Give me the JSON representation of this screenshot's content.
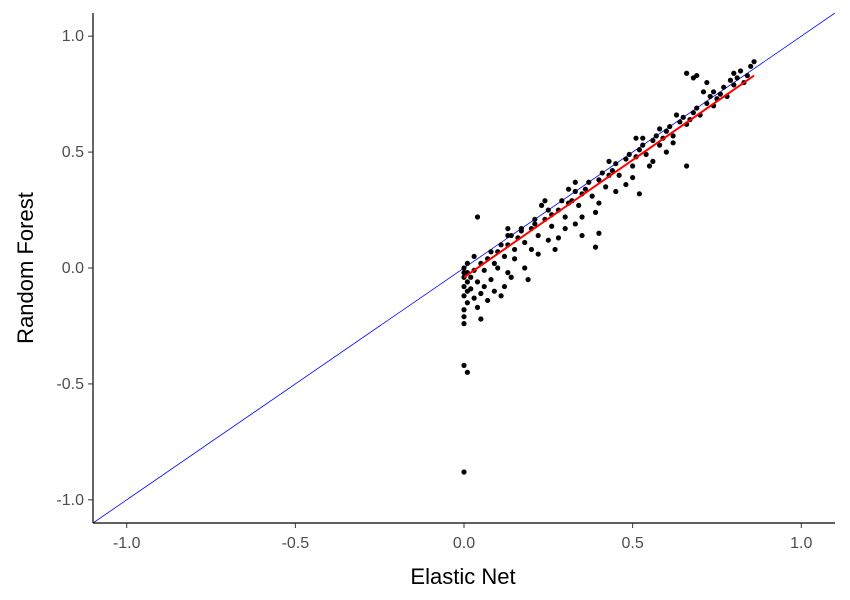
{
  "chart_data": {
    "type": "scatter",
    "title": "",
    "xlabel": "Elastic Net",
    "ylabel": "Random Forest",
    "xlim": [
      -1.1,
      1.1
    ],
    "ylim": [
      -1.1,
      1.1
    ],
    "x_ticks": [
      -1.0,
      -0.5,
      0.0,
      0.5,
      1.0
    ],
    "x_tick_labels": [
      "-1.0",
      "-0.5",
      "0.0",
      "0.5",
      "1.0"
    ],
    "y_ticks": [
      -1.0,
      -0.5,
      0.0,
      0.5,
      1.0
    ],
    "y_tick_labels": [
      "-1.0",
      "-0.5",
      "0.0",
      "0.5",
      "1.0"
    ],
    "grid": false,
    "legend": "none",
    "reference_line": {
      "kind": "identity",
      "slope": 1,
      "intercept": 0,
      "color": "#0000ff"
    },
    "fit_line": {
      "kind": "linear",
      "x_start": 0.0,
      "y_start": -0.04,
      "x_end": 0.86,
      "y_end": 0.83,
      "color": "#ff0000"
    },
    "point_color": "#000000",
    "points": [
      [
        0.0,
        -0.88
      ],
      [
        0.0,
        -0.42
      ],
      [
        0.01,
        -0.45
      ],
      [
        0.0,
        -0.24
      ],
      [
        0.0,
        -0.21
      ],
      [
        0.0,
        -0.18
      ],
      [
        0.01,
        -0.15
      ],
      [
        0.0,
        -0.12
      ],
      [
        0.01,
        -0.1
      ],
      [
        0.0,
        -0.08
      ],
      [
        0.01,
        -0.06
      ],
      [
        0.0,
        -0.04
      ],
      [
        0.01,
        -0.02
      ],
      [
        0.0,
        0.0
      ],
      [
        0.01,
        0.02
      ],
      [
        0.0,
        -0.02
      ],
      [
        0.02,
        -0.09
      ],
      [
        0.03,
        -0.13
      ],
      [
        0.05,
        -0.22
      ],
      [
        0.04,
        -0.17
      ],
      [
        0.07,
        -0.14
      ],
      [
        0.09,
        -0.1
      ],
      [
        0.12,
        -0.08
      ],
      [
        0.14,
        -0.04
      ],
      [
        0.11,
        -0.12
      ],
      [
        0.18,
        0.0
      ],
      [
        0.19,
        -0.05
      ],
      [
        0.04,
        0.22
      ],
      [
        0.05,
        0.02
      ],
      [
        0.07,
        0.04
      ],
      [
        0.1,
        0.07
      ],
      [
        0.13,
        0.1
      ],
      [
        0.16,
        0.13
      ],
      [
        0.2,
        0.17
      ],
      [
        0.24,
        0.21
      ],
      [
        0.28,
        0.25
      ],
      [
        0.32,
        0.29
      ],
      [
        0.36,
        0.34
      ],
      [
        0.4,
        0.38
      ],
      [
        0.44,
        0.42
      ],
      [
        0.48,
        0.47
      ],
      [
        0.52,
        0.51
      ],
      [
        0.56,
        0.55
      ],
      [
        0.6,
        0.59
      ],
      [
        0.64,
        0.63
      ],
      [
        0.68,
        0.67
      ],
      [
        0.72,
        0.71
      ],
      [
        0.76,
        0.75
      ],
      [
        0.8,
        0.79
      ],
      [
        0.84,
        0.83
      ],
      [
        0.06,
        -0.01
      ],
      [
        0.09,
        0.02
      ],
      [
        0.12,
        0.05
      ],
      [
        0.15,
        0.08
      ],
      [
        0.18,
        0.11
      ],
      [
        0.22,
        0.14
      ],
      [
        0.26,
        0.18
      ],
      [
        0.3,
        0.22
      ],
      [
        0.34,
        0.27
      ],
      [
        0.38,
        0.31
      ],
      [
        0.42,
        0.35
      ],
      [
        0.46,
        0.4
      ],
      [
        0.5,
        0.44
      ],
      [
        0.54,
        0.49
      ],
      [
        0.58,
        0.53
      ],
      [
        0.62,
        0.57
      ],
      [
        0.66,
        0.62
      ],
      [
        0.7,
        0.66
      ],
      [
        0.74,
        0.7
      ],
      [
        0.78,
        0.74
      ],
      [
        0.08,
        0.07
      ],
      [
        0.11,
        0.1
      ],
      [
        0.14,
        0.14
      ],
      [
        0.17,
        0.17
      ],
      [
        0.21,
        0.21
      ],
      [
        0.25,
        0.25
      ],
      [
        0.29,
        0.29
      ],
      [
        0.33,
        0.33
      ],
      [
        0.37,
        0.37
      ],
      [
        0.41,
        0.41
      ],
      [
        0.45,
        0.45
      ],
      [
        0.49,
        0.49
      ],
      [
        0.53,
        0.53
      ],
      [
        0.57,
        0.57
      ],
      [
        0.61,
        0.61
      ],
      [
        0.65,
        0.65
      ],
      [
        0.69,
        0.69
      ],
      [
        0.73,
        0.74
      ],
      [
        0.77,
        0.78
      ],
      [
        0.81,
        0.82
      ],
      [
        0.1,
        0.0
      ],
      [
        0.15,
        0.04
      ],
      [
        0.2,
        0.08
      ],
      [
        0.25,
        0.12
      ],
      [
        0.3,
        0.17
      ],
      [
        0.35,
        0.22
      ],
      [
        0.4,
        0.28
      ],
      [
        0.45,
        0.33
      ],
      [
        0.5,
        0.39
      ],
      [
        0.55,
        0.44
      ],
      [
        0.6,
        0.5
      ],
      [
        0.13,
        -0.02
      ],
      [
        0.22,
        0.06
      ],
      [
        0.28,
        0.13
      ],
      [
        0.39,
        0.24
      ],
      [
        0.39,
        0.09
      ],
      [
        0.4,
        0.15
      ],
      [
        0.52,
        0.32
      ],
      [
        0.66,
        0.44
      ],
      [
        0.35,
        0.14
      ],
      [
        0.27,
        0.08
      ],
      [
        0.33,
        0.19
      ],
      [
        0.48,
        0.36
      ],
      [
        0.56,
        0.46
      ],
      [
        0.62,
        0.54
      ],
      [
        0.17,
        0.16
      ],
      [
        0.21,
        0.19
      ],
      [
        0.26,
        0.23
      ],
      [
        0.31,
        0.28
      ],
      [
        0.35,
        0.32
      ],
      [
        0.43,
        0.4
      ],
      [
        0.51,
        0.48
      ],
      [
        0.59,
        0.56
      ],
      [
        0.67,
        0.64
      ],
      [
        0.75,
        0.73
      ],
      [
        0.13,
        0.17
      ],
      [
        0.23,
        0.27
      ],
      [
        0.33,
        0.37
      ],
      [
        0.43,
        0.46
      ],
      [
        0.53,
        0.56
      ],
      [
        0.63,
        0.66
      ],
      [
        0.71,
        0.76
      ],
      [
        0.68,
        0.82
      ],
      [
        0.66,
        0.84
      ],
      [
        0.69,
        0.83
      ],
      [
        0.72,
        0.8
      ],
      [
        0.8,
        0.84
      ],
      [
        0.82,
        0.85
      ],
      [
        0.85,
        0.87
      ],
      [
        0.86,
        0.89
      ],
      [
        0.79,
        0.81
      ],
      [
        0.83,
        0.8
      ],
      [
        0.74,
        0.76
      ],
      [
        0.58,
        0.6
      ],
      [
        0.51,
        0.56
      ],
      [
        0.31,
        0.34
      ],
      [
        0.24,
        0.29
      ],
      [
        0.13,
        0.14
      ],
      [
        0.03,
        0.05
      ],
      [
        0.02,
        -0.04
      ],
      [
        0.04,
        -0.06
      ],
      [
        0.06,
        -0.08
      ],
      [
        0.08,
        -0.05
      ],
      [
        0.05,
        -0.11
      ],
      [
        0.03,
        -0.01
      ]
    ]
  }
}
